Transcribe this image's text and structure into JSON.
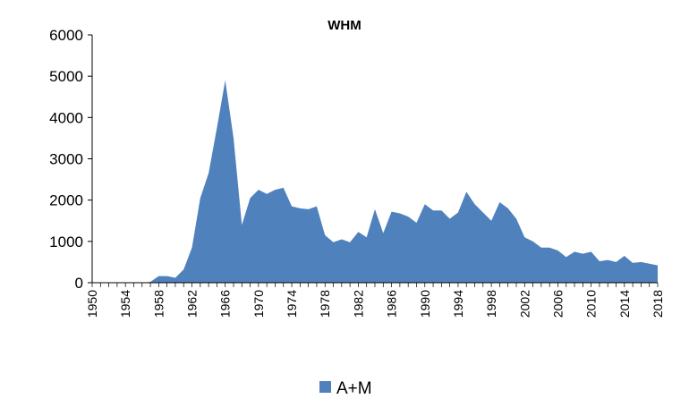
{
  "chart_data": {
    "type": "area",
    "title": "WHM",
    "xlabel": "",
    "ylabel": "",
    "ylim": [
      0,
      6000
    ],
    "yticks": [
      0,
      1000,
      2000,
      3000,
      4000,
      5000,
      6000
    ],
    "xlim": [
      1950,
      2018
    ],
    "xticks": [
      1950,
      1954,
      1958,
      1962,
      1966,
      1970,
      1974,
      1978,
      1982,
      1986,
      1990,
      1994,
      1998,
      2002,
      2006,
      2010,
      2014,
      2018
    ],
    "grid": false,
    "legend_position": "bottom",
    "color": "#4f81bd",
    "series": [
      {
        "name": "A+M",
        "x": [
          1950,
          1951,
          1952,
          1953,
          1954,
          1955,
          1956,
          1957,
          1958,
          1959,
          1960,
          1961,
          1962,
          1963,
          1964,
          1965,
          1966,
          1967,
          1968,
          1969,
          1970,
          1971,
          1972,
          1973,
          1974,
          1975,
          1976,
          1977,
          1978,
          1979,
          1980,
          1981,
          1982,
          1983,
          1984,
          1985,
          1986,
          1987,
          1988,
          1989,
          1990,
          1991,
          1992,
          1993,
          1994,
          1995,
          1996,
          1997,
          1998,
          1999,
          2000,
          2001,
          2002,
          2003,
          2004,
          2005,
          2006,
          2007,
          2008,
          2009,
          2010,
          2011,
          2012,
          2013,
          2014,
          2015,
          2016,
          2017,
          2018
        ],
        "values": [
          0,
          0,
          0,
          0,
          0,
          0,
          0,
          20,
          160,
          160,
          120,
          320,
          850,
          2050,
          2650,
          3750,
          4900,
          3500,
          1400,
          2050,
          2250,
          2150,
          2250,
          2300,
          1850,
          1800,
          1780,
          1850,
          1150,
          980,
          1050,
          980,
          1230,
          1100,
          1780,
          1200,
          1720,
          1680,
          1600,
          1450,
          1900,
          1750,
          1750,
          1550,
          1700,
          2200,
          1900,
          1700,
          1500,
          1950,
          1800,
          1550,
          1100,
          1000,
          850,
          850,
          780,
          620,
          750,
          700,
          750,
          520,
          550,
          500,
          650,
          480,
          500,
          460,
          420
        ]
      }
    ]
  }
}
